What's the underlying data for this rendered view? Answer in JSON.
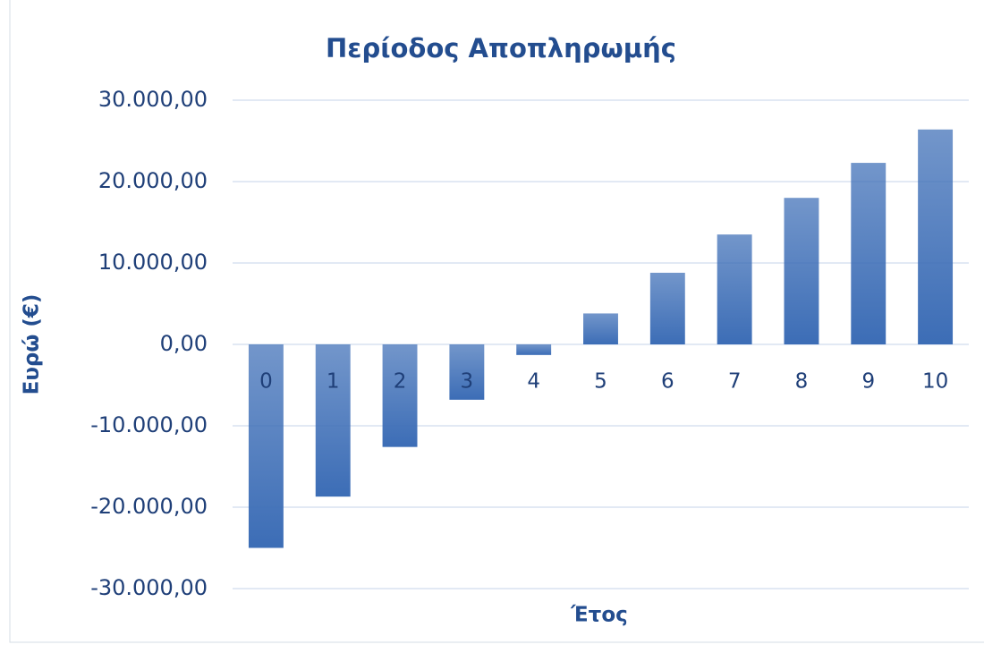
{
  "chart_data": {
    "type": "bar",
    "title": "Περίοδος Αποπληρωμής",
    "x_label": "Έτος",
    "y_label": "Ευρώ (€)",
    "categories": [
      "0",
      "1",
      "2",
      "3",
      "4",
      "5",
      "6",
      "7",
      "8",
      "9",
      "10"
    ],
    "values": [
      -25000,
      -18700,
      -12600,
      -6800,
      -1300,
      3800,
      8800,
      13500,
      18000,
      22300,
      26400
    ],
    "color": "#3c6db6",
    "ylim": [
      -30000,
      30000
    ],
    "yticks": [
      {
        "value": -30000,
        "label": "-30.000,00"
      },
      {
        "value": -20000,
        "label": "-20.000,00"
      },
      {
        "value": -10000,
        "label": "-10.000,00"
      },
      {
        "value": 0,
        "label": "0,00"
      },
      {
        "value": 10000,
        "label": "10.000,00"
      },
      {
        "value": 20000,
        "label": "20.000,00"
      },
      {
        "value": 30000,
        "label": "30.000,00"
      }
    ],
    "grid": true
  }
}
